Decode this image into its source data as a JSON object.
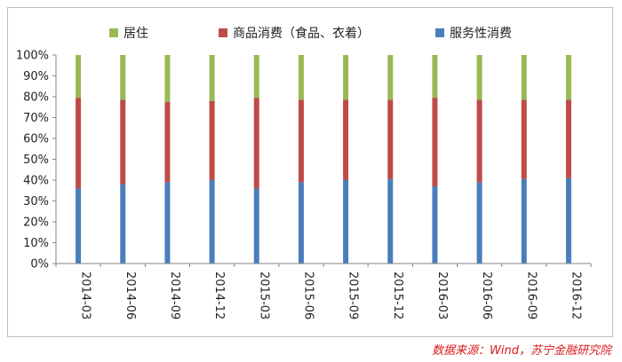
{
  "chart_data": {
    "type": "bar",
    "stacked": true,
    "categories": [
      "2014-03",
      "2014-06",
      "2014-09",
      "2014-12",
      "2015-03",
      "2015-06",
      "2015-09",
      "2015-12",
      "2016-03",
      "2016-06",
      "2016-09",
      "2016-12"
    ],
    "series": [
      {
        "name": "服务性消费",
        "color": "#4a7ebb",
        "values": [
          36,
          38,
          39,
          40,
          36,
          39,
          40,
          40.5,
          37,
          39,
          40.5,
          41
        ]
      },
      {
        "name": "商品消费（食品、衣着）",
        "color": "#be4b48",
        "values": [
          43.5,
          40.5,
          38.5,
          38,
          43.5,
          39.5,
          38.5,
          38,
          42.5,
          39.5,
          38,
          37.5
        ]
      },
      {
        "name": "居住",
        "color": "#98b954",
        "values": [
          20.5,
          21.5,
          22.5,
          22,
          20.5,
          21.5,
          21.5,
          21.5,
          20.5,
          21.5,
          21.5,
          21.5
        ]
      }
    ],
    "legend_order": [
      "居住",
      "商品消费（食品、衣着）",
      "服务性消费"
    ],
    "legend_position": "top",
    "ylim": [
      0,
      100
    ],
    "yticks": [
      "0%",
      "10%",
      "20%",
      "30%",
      "40%",
      "50%",
      "60%",
      "70%",
      "80%",
      "90%",
      "100%"
    ],
    "grid": false
  },
  "source": "数据来源：Wind，苏宁金融研究院"
}
